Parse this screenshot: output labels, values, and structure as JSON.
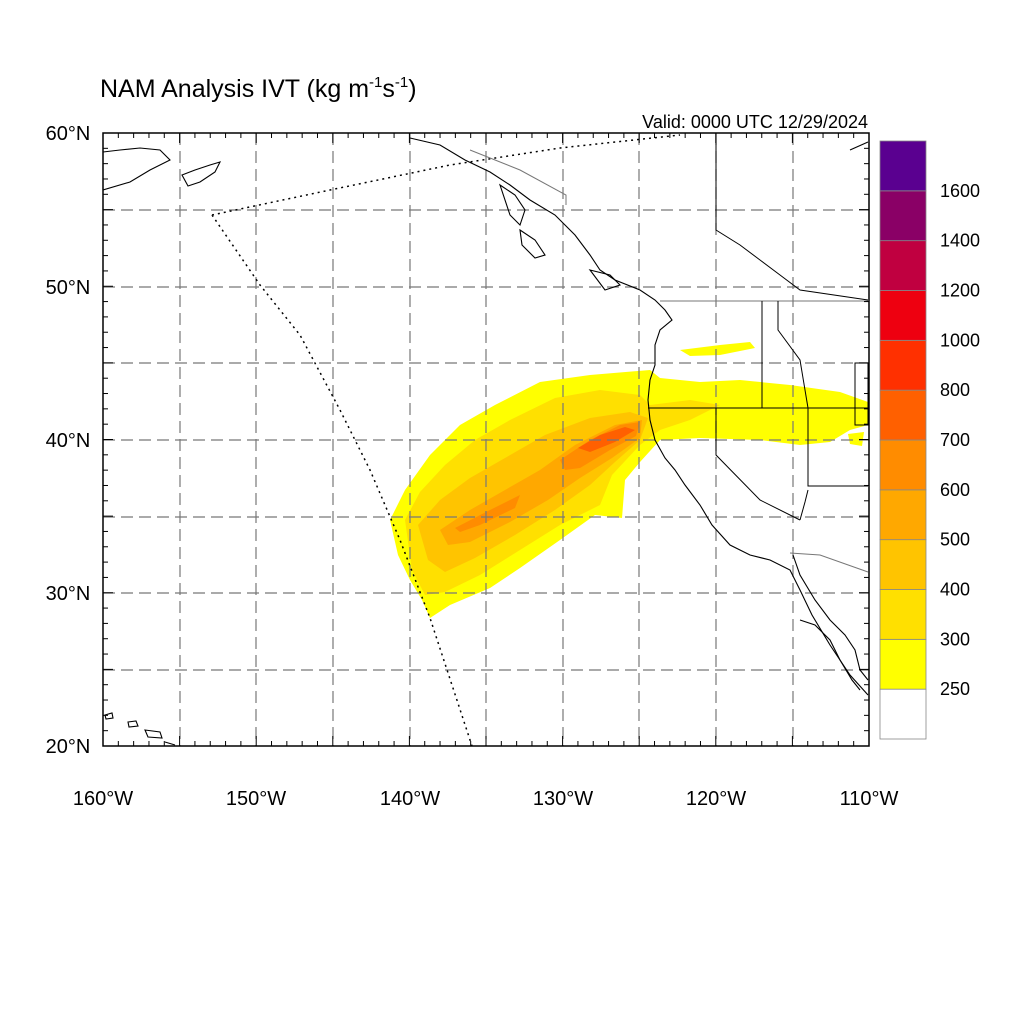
{
  "title": {
    "main": "NAM Analysis IVT (kg m",
    "sup1": "-1",
    "mid": "s",
    "sup2": "-1",
    "close": ")"
  },
  "valid_time": "Valid: 0000 UTC 12/29/2024",
  "map": {
    "lon_range": [
      -160,
      -110
    ],
    "lat_range": [
      20,
      60
    ],
    "lat_labels": [
      "60°N",
      "50°N",
      "40°N",
      "30°N",
      "20°N"
    ],
    "lon_labels": [
      "160°W",
      "150°W",
      "140°W",
      "130°W",
      "120°W",
      "110°W"
    ],
    "grid": true,
    "grid_spacing_deg": 5
  },
  "colorbar": {
    "levels": [
      "250",
      "300",
      "400",
      "500",
      "600",
      "700",
      "800",
      "1000",
      "1200",
      "1400",
      "1600"
    ],
    "colors": [
      "#ffffff",
      "#ffff00",
      "#ffe000",
      "#ffc400",
      "#ffa800",
      "#ff8c00",
      "#ff6000",
      "#ff3000",
      "#ee0010",
      "#c00040",
      "#8a0066",
      "#5a0090"
    ]
  },
  "colors": {
    "ivt_250": "#ffff00",
    "ivt_300": "#ffe000",
    "ivt_400": "#ffc400",
    "ivt_500": "#ffa800",
    "ivt_600": "#ff8c00",
    "ivt_700": "#ff6000"
  }
}
